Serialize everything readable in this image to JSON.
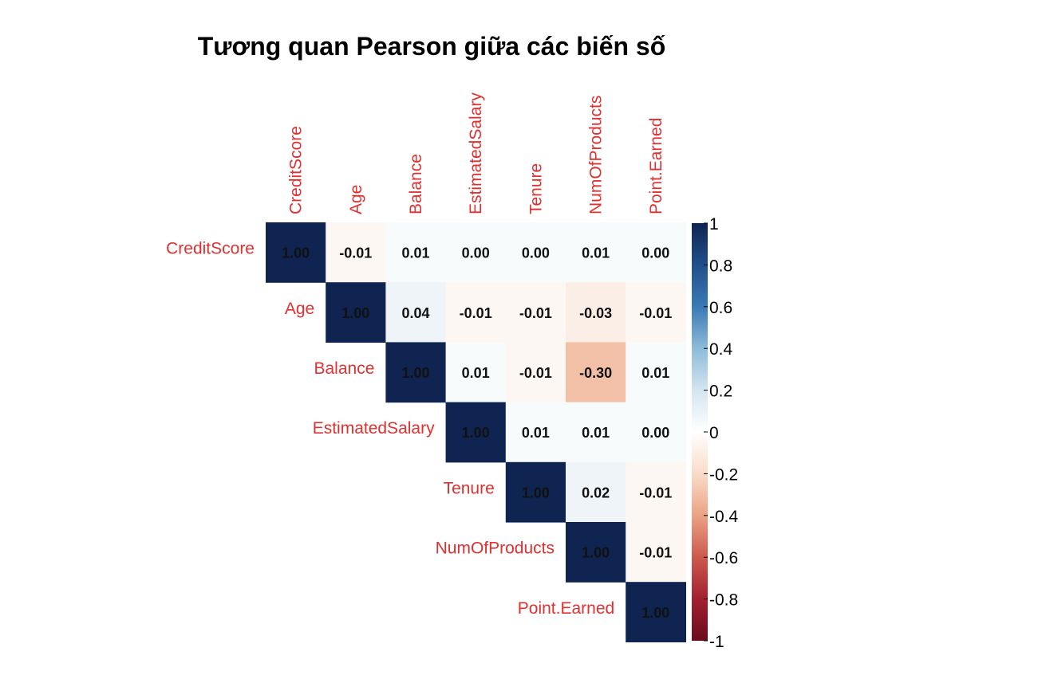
{
  "chart_data": {
    "type": "heatmap",
    "title": "Tương quan Pearson giữa các biến số",
    "variables": [
      "CreditScore",
      "Age",
      "Balance",
      "EstimatedSalary",
      "Tenure",
      "NumOfProducts",
      "Point.Earned"
    ],
    "matrix": [
      [
        "1.00",
        "-0.01",
        "0.01",
        "0.00",
        "0.00",
        "0.01",
        "0.00"
      ],
      [
        null,
        "1.00",
        "0.04",
        "-0.01",
        "-0.01",
        "-0.03",
        "-0.01"
      ],
      [
        null,
        null,
        "1.00",
        "0.01",
        "-0.01",
        "-0.30",
        "0.01"
      ],
      [
        null,
        null,
        null,
        "1.00",
        "0.01",
        "0.01",
        "0.00"
      ],
      [
        null,
        null,
        null,
        null,
        "1.00",
        "0.02",
        "-0.01"
      ],
      [
        null,
        null,
        null,
        null,
        null,
        "1.00",
        "-0.01"
      ],
      [
        null,
        null,
        null,
        null,
        null,
        null,
        "1.00"
      ]
    ],
    "display": "upper-triangle",
    "color_scale": {
      "range": [
        -1,
        1
      ],
      "ticks": [
        "1",
        "0.8",
        "0.6",
        "0.4",
        "0.2",
        "0",
        "-0.2",
        "-0.4",
        "-0.6",
        "-0.8",
        "-1"
      ],
      "high_color": "#0f2451",
      "mid_color": "#ffffff",
      "low_color": "#6b0b1d"
    },
    "label_color": "#e03030",
    "value_text_color": "#111111"
  }
}
